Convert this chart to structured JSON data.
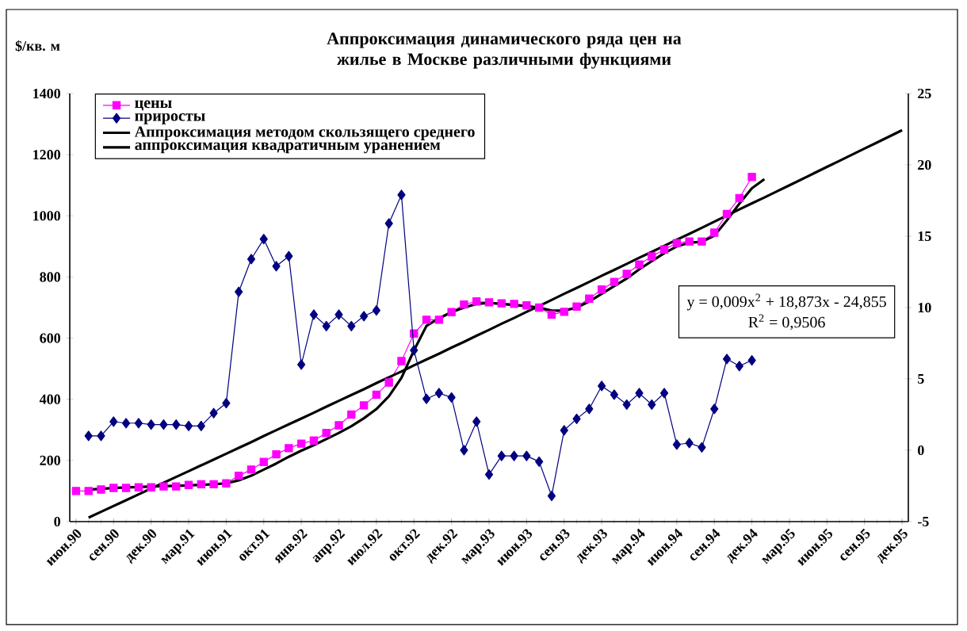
{
  "chart_data": {
    "type": "line",
    "title": "Аппроксимация динамического ряда цен на жилье в Москве различными функциями",
    "ylabel": "$/кв. м",
    "categories": [
      "июн.90",
      null,
      null,
      "сен.90",
      null,
      null,
      "дек.90",
      null,
      null,
      "мар.91",
      null,
      null,
      "июн.91",
      null,
      null,
      "окт.91",
      null,
      null,
      "янв.92",
      null,
      null,
      "апр.92",
      null,
      null,
      "июл.92",
      null,
      null,
      "окт.92",
      null,
      null,
      "дек.92",
      null,
      null,
      "мар.93",
      null,
      null,
      "июн.93",
      null,
      null,
      "сен.93",
      null,
      null,
      "дек.93",
      null,
      null,
      "мар.94",
      null,
      null,
      "июн.94",
      null,
      null,
      "сен.94",
      null,
      null,
      "дек.94",
      null,
      null,
      "мар.95",
      null,
      null,
      "июн.95",
      null,
      null,
      "сен.95",
      null,
      null,
      "дек.95"
    ],
    "series": [
      {
        "name": "цены",
        "color": "#ff00ff",
        "marker": "square",
        "values": [
          100,
          100,
          105,
          110,
          110,
          112,
          112,
          115,
          115,
          120,
          122,
          122,
          125,
          150,
          170,
          195,
          220,
          240,
          255,
          265,
          290,
          315,
          350,
          380,
          415,
          455,
          525,
          615,
          660,
          660,
          685,
          710,
          720,
          717,
          714,
          712,
          707,
          700,
          677,
          686,
          703,
          729,
          759,
          784,
          810,
          841,
          867,
          890,
          911,
          916,
          916,
          945,
          1006,
          1058,
          1127,
          null,
          null,
          null,
          null,
          null,
          null,
          null,
          null,
          null,
          null,
          null,
          null
        ]
      },
      {
        "name": "приросты",
        "color": "#000080",
        "marker": "diamond",
        "axis": "y2",
        "values": [
          null,
          1.0,
          1.0,
          2.0,
          1.9,
          1.9,
          1.8,
          1.8,
          1.8,
          1.7,
          1.7,
          2.6,
          3.3,
          11.1,
          13.4,
          14.8,
          12.9,
          13.6,
          6.0,
          9.5,
          8.7,
          9.5,
          8.7,
          9.4,
          9.8,
          15.9,
          17.9,
          7.0,
          3.6,
          4.0,
          3.7,
          0.0,
          2.0,
          -1.7,
          -0.4,
          -0.4,
          -0.4,
          -0.8,
          -3.2,
          1.4,
          2.2,
          2.9,
          4.5,
          3.9,
          3.2,
          4.0,
          3.2,
          4.0,
          0.4,
          0.5,
          0.2,
          2.9,
          6.4,
          5.9,
          6.3,
          null,
          null,
          null,
          null,
          null,
          null,
          null,
          null,
          null,
          null,
          null,
          null
        ]
      },
      {
        "name": "Аппроксимация методом скользящего среднего",
        "color": "#000000",
        "marker": "none",
        "values": [
          null,
          105,
          107,
          110,
          112,
          113,
          115,
          116,
          117,
          118,
          120,
          122,
          125,
          135,
          150,
          170,
          190,
          212,
          232,
          250,
          270,
          290,
          312,
          338,
          368,
          410,
          470,
          560,
          640,
          665,
          685,
          700,
          712,
          715,
          712,
          708,
          705,
          700,
          690,
          690,
          700,
          720,
          745,
          770,
          795,
          825,
          852,
          878,
          900,
          912,
          915,
          935,
          985,
          1040,
          1090,
          1120,
          null,
          null,
          null,
          null,
          null,
          null,
          null,
          null,
          null,
          null,
          null
        ]
      },
      {
        "name": "аппроксимация квадратичным уранением",
        "color": "#000000",
        "marker": "none",
        "values": [
          null,
          13,
          32,
          51,
          70,
          89,
          108,
          127,
          146,
          165,
          184,
          203,
          222,
          241,
          260,
          280,
          299,
          318,
          337,
          356,
          376,
          395,
          414,
          433,
          453,
          472,
          491,
          511,
          530,
          549,
          569,
          588,
          608,
          627,
          647,
          666,
          686,
          705,
          725,
          745,
          764,
          784,
          804,
          823,
          843,
          863,
          882,
          902,
          922,
          941,
          961,
          981,
          1001,
          1021,
          1041,
          1060,
          1080,
          1100,
          1120,
          1140,
          1160,
          1180,
          1200,
          1220,
          1240,
          1260,
          1280
        ]
      }
    ],
    "ylim": [
      0,
      1400
    ],
    "yticks": [
      0,
      200,
      400,
      600,
      800,
      1000,
      1200,
      1400
    ],
    "y2lim": [
      -5,
      25
    ],
    "y2ticks": [
      -5,
      0,
      5,
      10,
      15,
      20,
      25
    ],
    "legend": "top left",
    "annotations": [
      "y = 0,009x$^{2}$ + 18,873x - 24,855",
      "R$^{2}$ = 0,9506"
    ]
  }
}
